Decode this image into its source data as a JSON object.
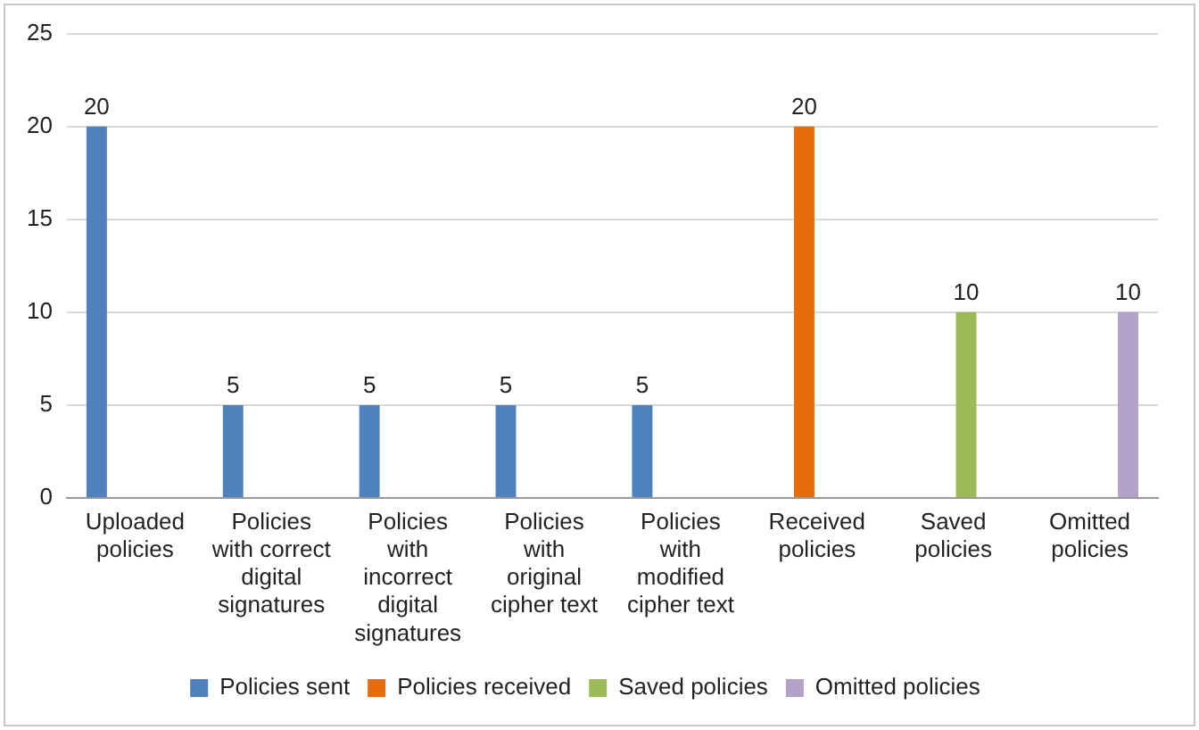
{
  "chart_data": {
    "type": "bar",
    "categories": [
      "Uploaded policies",
      "Policies with correct digital signatures",
      "Policies with incorrect digital signatures",
      "Policies with original cipher text",
      "Policies with modified cipher text",
      "Received policies",
      "Saved policies",
      "Omitted policies"
    ],
    "series": [
      {
        "name": "Policies sent",
        "color": "#4f81bd",
        "values": [
          20,
          5,
          5,
          5,
          5,
          null,
          null,
          null
        ]
      },
      {
        "name": "Policies received",
        "color": "#e46c0a",
        "values": [
          null,
          null,
          null,
          null,
          null,
          20,
          null,
          null
        ]
      },
      {
        "name": "Saved policies",
        "color": "#9bbb59",
        "values": [
          null,
          null,
          null,
          null,
          null,
          null,
          10,
          null
        ]
      },
      {
        "name": "Omitted policies",
        "color": "#b3a2c7",
        "values": [
          null,
          null,
          null,
          null,
          null,
          null,
          null,
          10
        ]
      }
    ],
    "ylim": [
      0,
      25
    ],
    "yticks": [
      0,
      5,
      10,
      15,
      20,
      25
    ],
    "grid": "y",
    "legend": "bottom",
    "data_labels": true
  }
}
